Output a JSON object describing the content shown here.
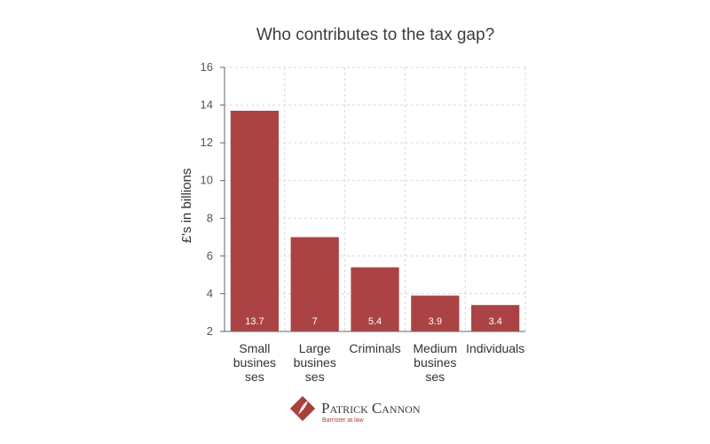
{
  "chart_data": {
    "type": "bar",
    "title": "Who contributes to the tax gap?",
    "xlabel": "",
    "ylabel": "£'s in billions",
    "categories": [
      [
        "Small",
        "busines",
        "ses"
      ],
      [
        "Large",
        "busines",
        "ses"
      ],
      [
        "Criminals"
      ],
      [
        "Medium",
        "busines",
        "ses"
      ],
      [
        "Individuals"
      ]
    ],
    "values": [
      13.7,
      7,
      5.4,
      3.9,
      3.4
    ],
    "data_labels": [
      "13.7",
      "7",
      "5.4",
      "3.9",
      "3.4"
    ],
    "ylim": [
      2,
      16
    ],
    "yticks": [
      2,
      4,
      6,
      8,
      10,
      12,
      14,
      16
    ],
    "grid": true,
    "bar_color": "#ab4345"
  },
  "branding": {
    "name": "Patrick Cannon",
    "tagline": "Barrister at law",
    "logo_color": "#a8403c"
  }
}
